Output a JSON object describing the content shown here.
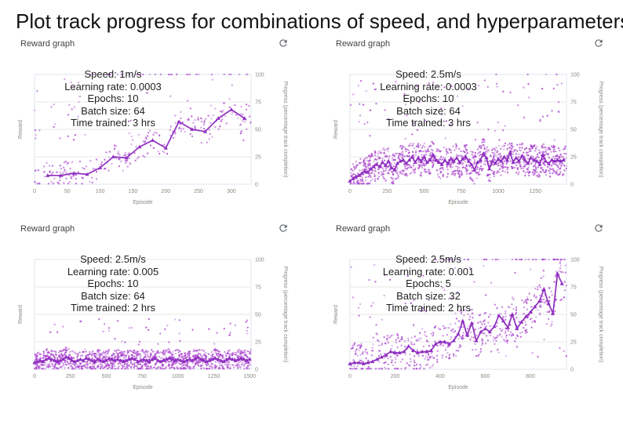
{
  "page": {
    "title": "Plot track progress for combinations of speed, and hyperparameters"
  },
  "colors": {
    "line": "#8f2fc0",
    "scatter": "#ab47cf",
    "grid": "#e7e7e7",
    "plot_border": "#dfe4ee",
    "tick_text": "#8c8882",
    "icon": "#5f6368"
  },
  "chart_data": [
    {
      "type": "scatter",
      "title": "Reward graph",
      "annotation_lines": [
        "Speed: 1m/s",
        "Learning rate: 0.0003",
        "Epochs: 10",
        "Batch size: 64",
        "Time trained: 3 hrs"
      ],
      "xlabel": "Episode",
      "ylabel_left": "Reward",
      "ylabel_right": "Progress (percentage track completion)",
      "x_ticks": [
        0,
        50,
        100,
        150,
        200,
        250,
        300
      ],
      "x_max": 330,
      "y_ticks": [
        0,
        25,
        50,
        75,
        100
      ],
      "ylim": [
        0,
        100
      ],
      "grid": true,
      "line_series": {
        "name": "average progress",
        "x_start": 20,
        "x_step": 20,
        "values": [
          8,
          8,
          10,
          9,
          15,
          25,
          24,
          34,
          40,
          33,
          57,
          50,
          48,
          60,
          68,
          60
        ]
      },
      "scatter_profile": {
        "seed": 11,
        "count": 310,
        "p_top": 0.13,
        "top_x_min_frac": 0.25,
        "p_high": 0.11,
        "high_range": [
          40,
          96
        ],
        "p_rare": 0,
        "rare_range": [
          0,
          0
        ],
        "low_spread": 12
      }
    },
    {
      "type": "scatter",
      "title": "Reward graph",
      "annotation_lines": [
        "Speed: 2.5m/s",
        "Learning rate: 0.0003",
        "Epochs: 10",
        "Batch size: 64",
        "Time trained: 3 hrs"
      ],
      "xlabel": "Episode",
      "ylabel_left": "Reward",
      "ylabel_right": "Progress (percentage track completion)",
      "x_ticks": [
        0,
        250,
        500,
        750,
        1000,
        1250
      ],
      "x_max": 1460,
      "y_ticks": [
        0,
        25,
        50,
        75,
        100
      ],
      "ylim": [
        0,
        100
      ],
      "grid": true,
      "line_series": {
        "name": "average progress",
        "x_start": 0,
        "x_step": 20,
        "values": [
          3,
          5,
          7,
          8,
          10,
          12,
          11,
          14,
          16,
          18,
          16,
          20,
          17,
          21,
          15,
          13,
          19,
          21,
          22,
          19,
          22,
          25,
          20,
          24,
          21,
          25,
          20,
          22,
          27,
          22,
          20,
          18,
          22,
          19,
          23,
          21,
          24,
          20,
          23,
          25,
          21,
          18,
          13,
          20,
          22,
          28,
          24,
          14,
          21,
          19,
          23,
          21,
          25,
          22,
          29,
          20,
          24,
          21,
          26,
          22,
          19,
          24,
          22,
          21,
          18,
          27,
          21,
          19,
          22,
          21,
          22,
          21,
          22
        ]
      },
      "scatter_profile": {
        "seed": 23,
        "count": 1250,
        "p_top": 0.004,
        "top_x_min_frac": 0.1,
        "p_high": 0.05,
        "high_range": [
          40,
          95
        ],
        "p_rare": 0.004,
        "rare_range": [
          70,
          100
        ],
        "low_spread": 14
      }
    },
    {
      "type": "scatter",
      "title": "Reward graph",
      "annotation_lines": [
        "Speed: 2.5m/s",
        "Learning rate: 0.005",
        "Epochs: 10",
        "Batch size: 64",
        "Time trained: 2 hrs"
      ],
      "xlabel": "Episode",
      "ylabel_left": "Reward",
      "ylabel_right": "Progress (percentage track completion)",
      "x_ticks": [
        0,
        250,
        500,
        750,
        1000,
        1250,
        1500
      ],
      "x_max": 1510,
      "y_ticks": [
        0,
        25,
        50,
        75,
        100
      ],
      "ylim": [
        0,
        100
      ],
      "grid": true,
      "line_series": {
        "name": "average progress",
        "x_start": 0,
        "x_step": 20,
        "values": [
          6,
          7,
          8,
          7,
          9,
          10,
          9,
          8,
          7,
          8,
          9,
          11,
          10,
          8,
          7,
          8,
          9,
          8,
          10,
          9,
          8,
          7,
          9,
          8,
          7,
          8,
          10,
          9,
          8,
          9,
          8,
          7,
          8,
          9,
          10,
          9,
          7,
          8,
          9,
          8,
          7,
          9,
          10,
          8,
          7,
          8,
          9,
          10,
          9,
          8,
          9,
          8,
          7,
          8,
          9,
          8,
          10,
          11,
          9,
          8,
          7,
          8,
          9,
          10,
          9,
          8,
          7,
          9,
          10,
          9,
          8,
          9,
          10,
          9,
          8,
          9
        ]
      },
      "scatter_profile": {
        "seed": 37,
        "count": 1250,
        "p_top": 0,
        "top_x_min_frac": 0,
        "p_high": 0.035,
        "high_range": [
          20,
          46
        ],
        "p_rare": 0.003,
        "rare_range": [
          48,
          90
        ],
        "low_spread": 9
      }
    },
    {
      "type": "scatter",
      "title": "Reward graph",
      "annotation_lines": [
        "Speed: 2.5m/s",
        "Learning rate: 0.001",
        "Epochs: 5",
        "Batch size: 32",
        "Time trained: 2 hrs"
      ],
      "xlabel": "Episode",
      "ylabel_left": "Reward",
      "ylabel_right": "Progress (percentage track completion)",
      "x_ticks": [
        0,
        200,
        400,
        600,
        800
      ],
      "x_max": 960,
      "y_ticks": [
        0,
        25,
        50,
        75,
        100
      ],
      "ylim": [
        0,
        100
      ],
      "grid": true,
      "line_series": {
        "name": "average progress",
        "x_start": 0,
        "x_step": 20,
        "values": [
          5,
          6,
          6,
          5,
          6,
          7,
          9,
          11,
          13,
          16,
          15,
          15,
          16,
          21,
          17,
          15,
          16,
          16,
          17,
          23,
          25,
          25,
          23,
          26,
          32,
          44,
          31,
          42,
          26,
          34,
          37,
          34,
          39,
          49,
          44,
          38,
          50,
          37,
          43,
          48,
          52,
          57,
          62,
          73,
          60,
          51,
          87,
          78
        ]
      },
      "scatter_profile": {
        "seed": 51,
        "count": 680,
        "p_top": 0.1,
        "top_x_min_frac": 0.38,
        "p_high": 0.13,
        "high_range": [
          10,
          95
        ],
        "p_rare": 0,
        "rare_range": [
          0,
          0
        ],
        "low_spread": 18
      }
    }
  ]
}
